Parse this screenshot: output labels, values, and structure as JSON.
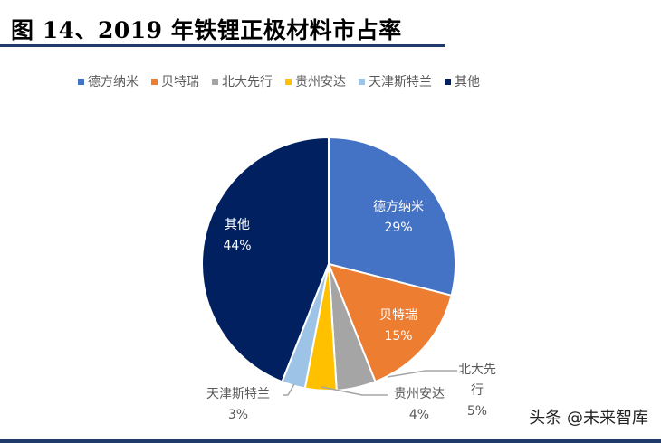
{
  "title": "图 14、2019 年铁锂正极材料市占率",
  "watermark": "头条 @未来智库",
  "chart_data": {
    "type": "pie",
    "title": "图 14、2019 年铁锂正极材料市占率",
    "legend_position": "top",
    "categories": [
      "德方纳米",
      "贝特瑞",
      "北大先行",
      "贵州安达",
      "天津斯特兰",
      "其他"
    ],
    "values": [
      29,
      15,
      5,
      4,
      3,
      44
    ],
    "value_labels": [
      "29%",
      "15%",
      "5%",
      "4%",
      "3%",
      "44%"
    ],
    "colors": [
      "#4472c4",
      "#ed7d31",
      "#a5a5a5",
      "#ffc000",
      "#9dc3e6",
      "#002060"
    ],
    "start": "top, clockwise"
  }
}
